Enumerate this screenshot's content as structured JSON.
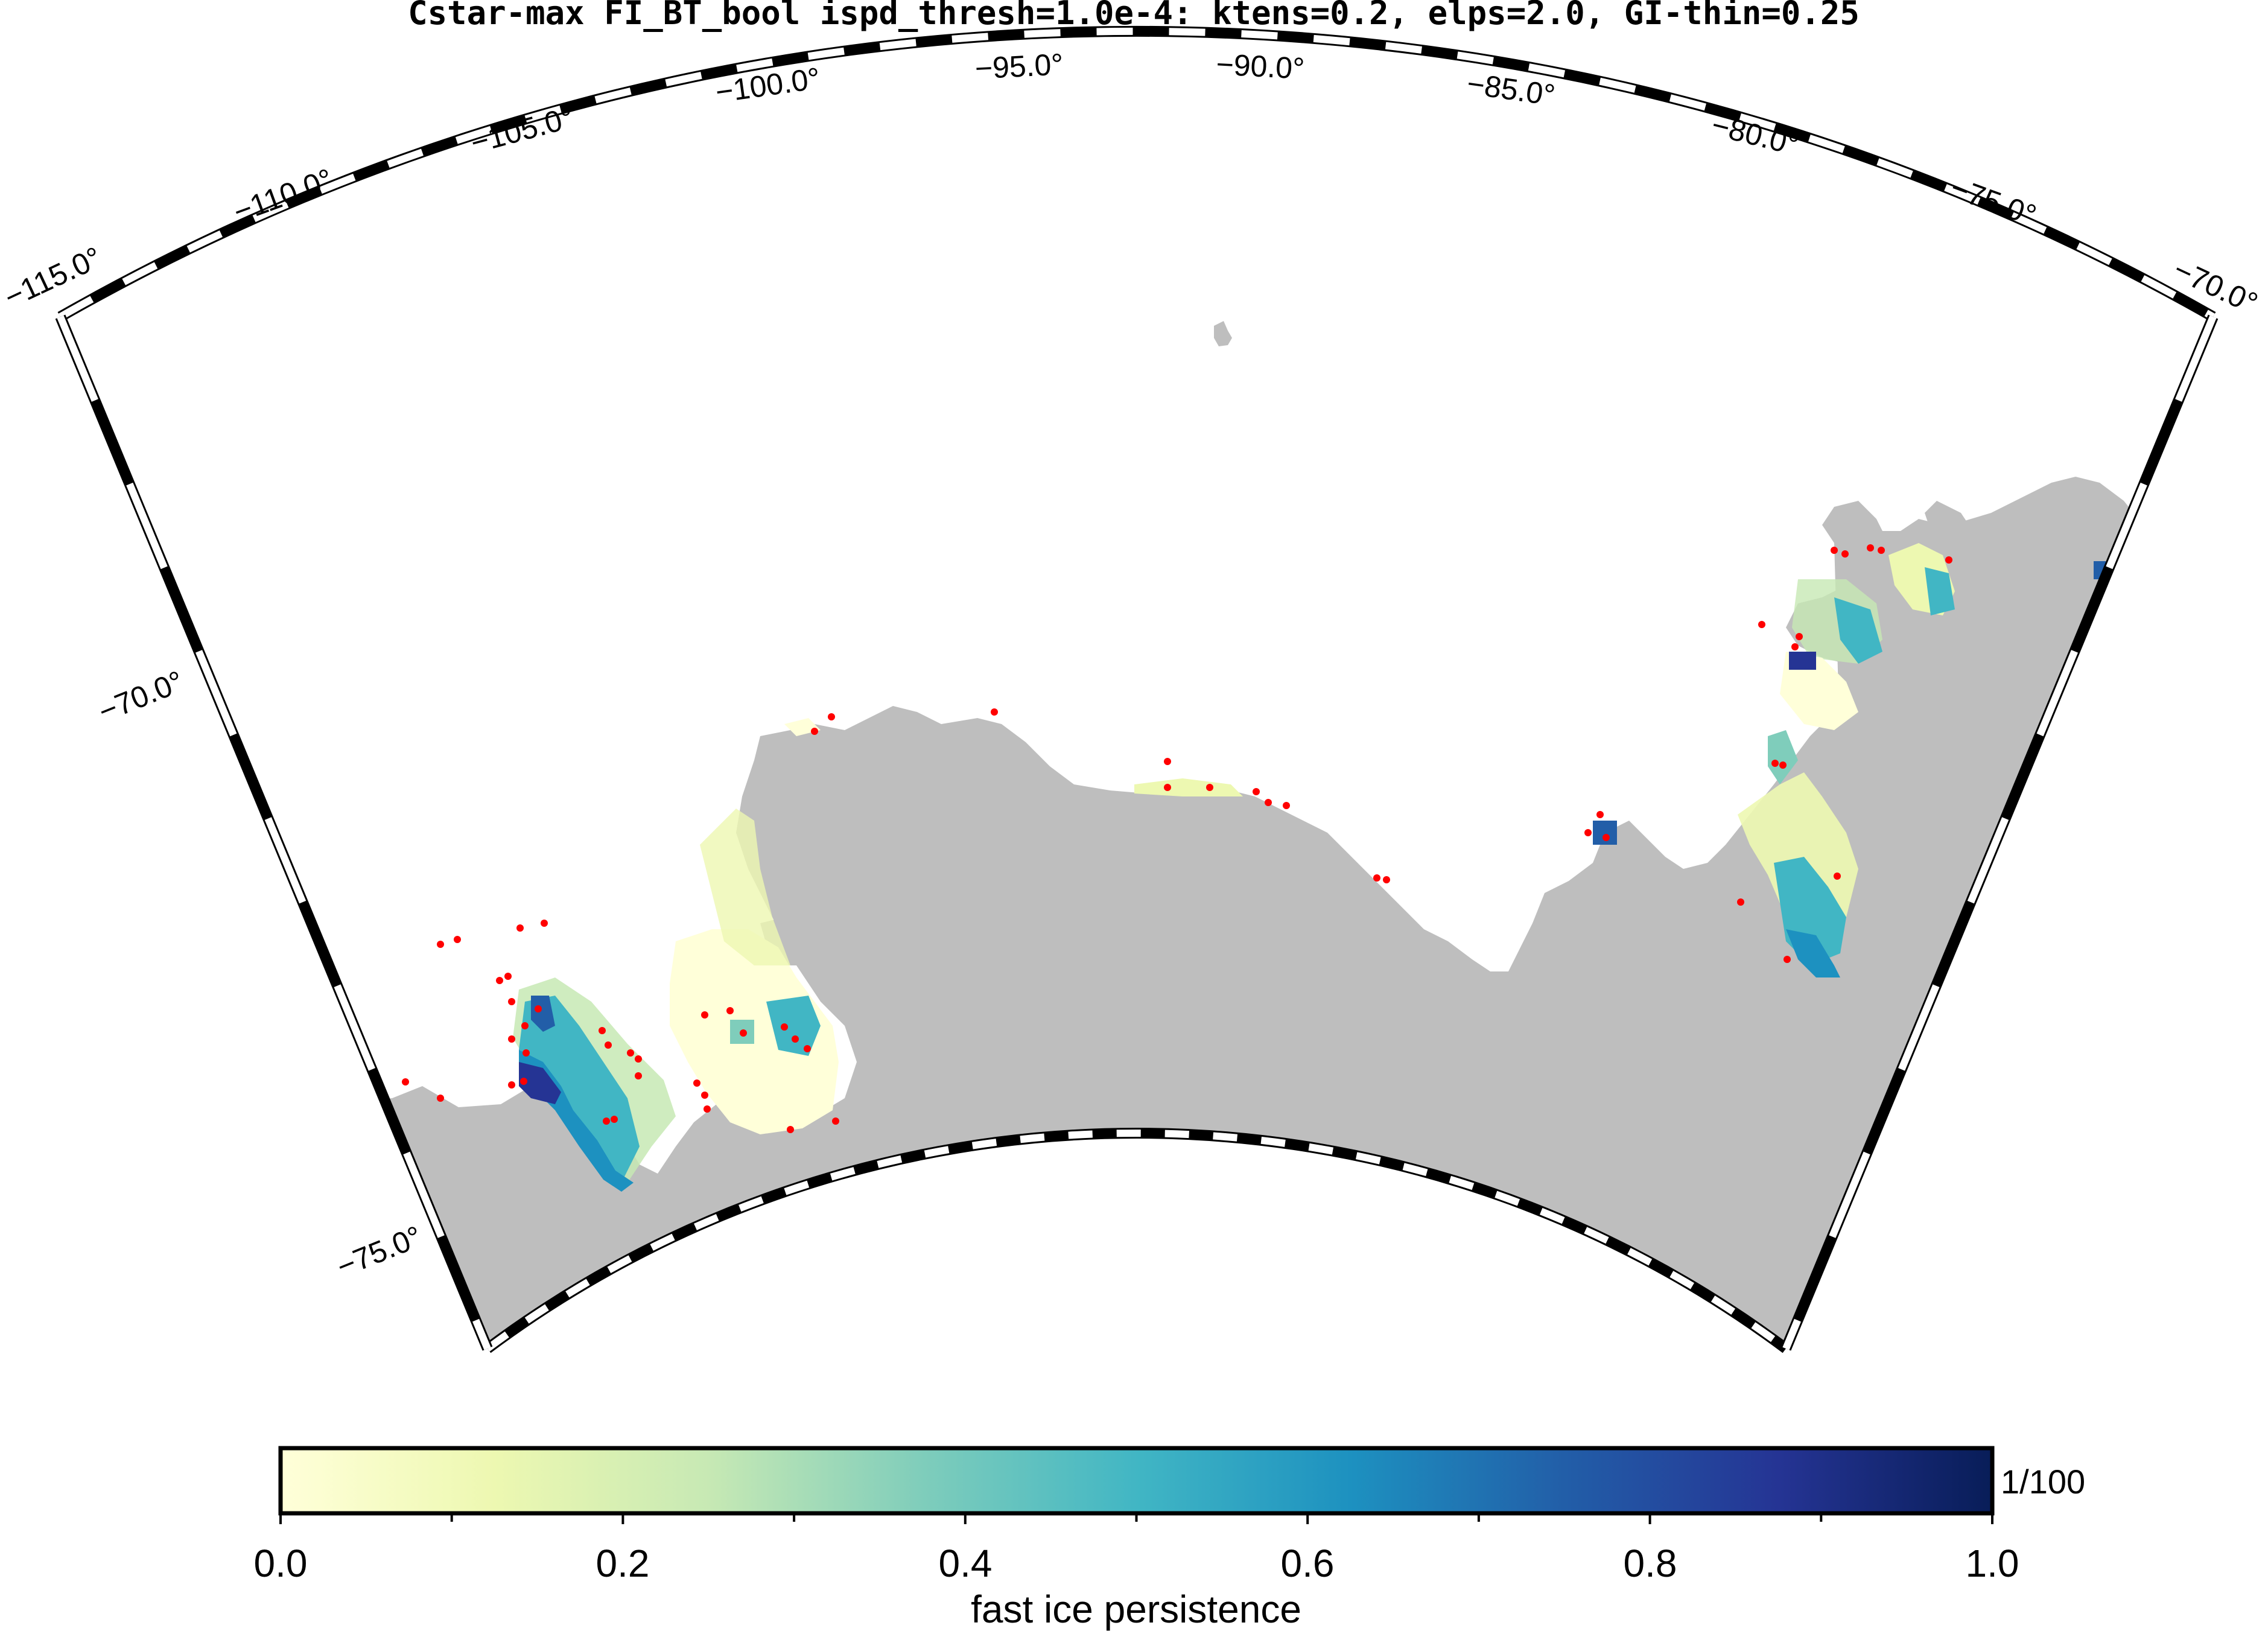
{
  "title": "Cstar-max FI_BT_bool ispd_thresh=1.0e-4: ktens=0.2, elps=2.0, GI-thin=0.25",
  "map": {
    "projection": "polar-stereographic sector",
    "longitude_labels": [
      "−115.0°",
      "−110.0°",
      "−105.0°",
      "−100.0°",
      "−95.0°",
      "−90.0°",
      "−85.0°",
      "−80.0°",
      "−75.0°",
      "−70.0°"
    ],
    "latitude_labels": [
      "−70.0°",
      "−75.0°"
    ],
    "land_color": "#bebebe",
    "ocean_color": "#ffffff",
    "grounded_iceberg_marker_color": "#ff0000"
  },
  "colorbar": {
    "label": "fast ice persistence",
    "unit": "1/100",
    "tick_labels": [
      "0.0",
      "0.2",
      "0.4",
      "0.6",
      "0.8",
      "1.0"
    ],
    "min": 0.0,
    "max": 1.0,
    "colormap": "YlGnBu",
    "stops": [
      "#ffffd9",
      "#edf8b1",
      "#c7e9b4",
      "#7fcdbb",
      "#41b6c4",
      "#1d91c0",
      "#225ea8",
      "#253494",
      "#081d58"
    ]
  }
}
